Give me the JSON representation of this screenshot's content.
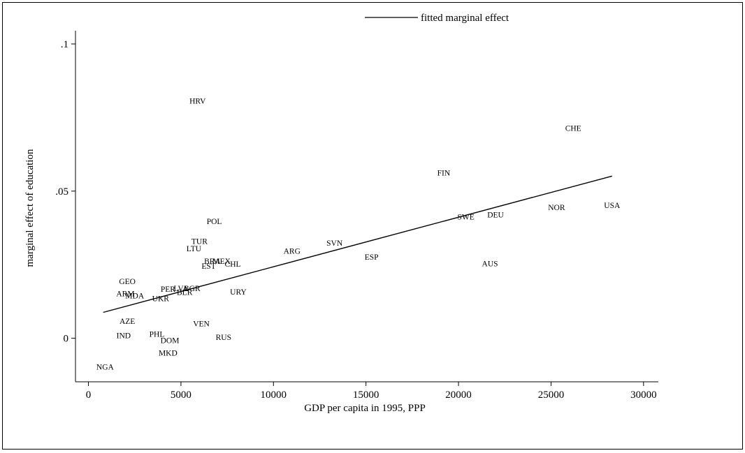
{
  "chart_data": {
    "type": "scatter",
    "title": "",
    "xlabel": "GDP per capita in 1995, PPP",
    "ylabel": "marginal effect of education",
    "xlim": [
      -700,
      30800
    ],
    "ylim": [
      -0.0148,
      0.1045
    ],
    "x_ticks": [
      0,
      5000,
      10000,
      15000,
      20000,
      25000,
      30000
    ],
    "x_tick_labels": [
      "0",
      "5000",
      "10000",
      "15000",
      "20000",
      "25000",
      "30000"
    ],
    "y_ticks": [
      0,
      0.05,
      0.1
    ],
    "y_tick_labels": [
      "0",
      ".05",
      ".1"
    ],
    "grid": false,
    "legend": {
      "placement": "top",
      "entries": [
        {
          "label": "fitted marginal effect"
        }
      ]
    },
    "points": [
      {
        "label": "HRV",
        "x": 5900,
        "y": 0.0807
      },
      {
        "label": "CHE",
        "x": 26200,
        "y": 0.0714
      },
      {
        "label": "FIN",
        "x": 19200,
        "y": 0.0562
      },
      {
        "label": "USA",
        "x": 28300,
        "y": 0.0452
      },
      {
        "label": "NOR",
        "x": 25300,
        "y": 0.0445
      },
      {
        "label": "DEU",
        "x": 22000,
        "y": 0.042
      },
      {
        "label": "SWE",
        "x": 20400,
        "y": 0.0413
      },
      {
        "label": "POL",
        "x": 6800,
        "y": 0.0397
      },
      {
        "label": "TUR",
        "x": 6000,
        "y": 0.033
      },
      {
        "label": "SVN",
        "x": 13300,
        "y": 0.0324
      },
      {
        "label": "LTU",
        "x": 5700,
        "y": 0.0305
      },
      {
        "label": "ARG",
        "x": 11000,
        "y": 0.0297
      },
      {
        "label": "ESP",
        "x": 15300,
        "y": 0.0276
      },
      {
        "label": "BRA",
        "x": 6700,
        "y": 0.0262
      },
      {
        "label": "MEX",
        "x": 7200,
        "y": 0.0262
      },
      {
        "label": "AUS",
        "x": 21700,
        "y": 0.0254
      },
      {
        "label": "CHL",
        "x": 7800,
        "y": 0.0253
      },
      {
        "label": "EST",
        "x": 6500,
        "y": 0.0246
      },
      {
        "label": "GEO",
        "x": 2100,
        "y": 0.0193
      },
      {
        "label": "PER",
        "x": 4300,
        "y": 0.0168
      },
      {
        "label": "LVA",
        "x": 5000,
        "y": 0.017
      },
      {
        "label": "BGR",
        "x": 5600,
        "y": 0.017
      },
      {
        "label": "URY",
        "x": 8100,
        "y": 0.0158
      },
      {
        "label": "BLR",
        "x": 5200,
        "y": 0.0157
      },
      {
        "label": "ARM",
        "x": 2000,
        "y": 0.0152
      },
      {
        "label": "MDA",
        "x": 2500,
        "y": 0.0145
      },
      {
        "label": "UKR",
        "x": 3900,
        "y": 0.0135
      },
      {
        "label": "AZE",
        "x": 2100,
        "y": 0.0058
      },
      {
        "label": "VEN",
        "x": 6100,
        "y": 0.005
      },
      {
        "label": "IND",
        "x": 1900,
        "y": 0.001
      },
      {
        "label": "PHL",
        "x": 3700,
        "y": 0.0015
      },
      {
        "label": "RUS",
        "x": 7300,
        "y": 0.0004
      },
      {
        "label": "DOM",
        "x": 4400,
        "y": -0.0007
      },
      {
        "label": "MKD",
        "x": 4300,
        "y": -0.005
      },
      {
        "label": "NGA",
        "x": 900,
        "y": -0.0097
      }
    ],
    "fitted_line": {
      "x": [
        800,
        28300
      ],
      "y": [
        0.0088,
        0.0551
      ]
    }
  }
}
